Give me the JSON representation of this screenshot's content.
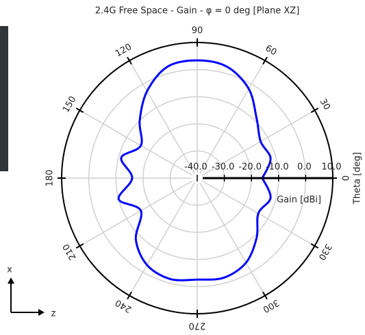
{
  "chart_data": {
    "type": "polar",
    "title": "2.4G Free Space - Gain - φ = 0 deg [Plane XZ]",
    "theta": [
      0,
      15,
      30,
      45,
      60,
      75,
      90,
      105,
      120,
      135,
      150,
      165,
      180,
      195,
      210,
      225,
      240,
      255,
      270,
      285,
      300,
      315,
      330,
      345,
      360
    ],
    "values": [
      -16,
      -12,
      -13,
      -9,
      -2,
      2.5,
      3.4,
      2.5,
      -3,
      -10,
      -16,
      -11,
      -16,
      -10,
      -16,
      -8,
      -3,
      -1.5,
      -2.6,
      -2,
      -4,
      -9,
      -14,
      -12,
      -16
    ],
    "color": "#0000ff",
    "rlim": [
      -40,
      10
    ],
    "rticks": [
      {
        "value": -40,
        "label": "-40.0"
      },
      {
        "value": -30,
        "label": "-30.0"
      },
      {
        "value": -20,
        "label": "-20.0"
      },
      {
        "value": -10,
        "label": "-10.0"
      },
      {
        "value": 0,
        "label": "0.0"
      },
      {
        "value": 10,
        "label": "10.0"
      }
    ],
    "thetaticks": [
      0,
      30,
      60,
      90,
      120,
      150,
      180,
      210,
      240,
      270,
      300,
      330
    ],
    "r_label": "Gain [dBi]",
    "theta_label": "Theta [deg]",
    "grid": true
  },
  "axes_gizmo": {
    "vertical": "x",
    "horizontal": "z"
  }
}
